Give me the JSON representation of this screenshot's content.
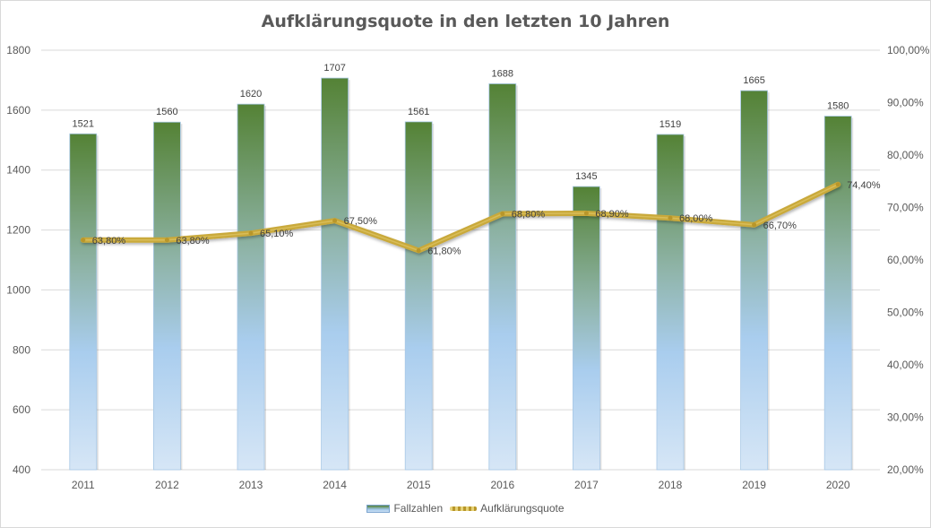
{
  "chart_data": {
    "type": "bar",
    "title": "Aufklärungsquote in den letzten 10 Jahren",
    "categories": [
      "2011",
      "2012",
      "2013",
      "2014",
      "2015",
      "2016",
      "2017",
      "2018",
      "2019",
      "2020"
    ],
    "series": [
      {
        "name": "Fallzahlen",
        "type": "bar",
        "axis": "left",
        "values": [
          1521,
          1560,
          1620,
          1707,
          1561,
          1688,
          1345,
          1519,
          1665,
          1580
        ],
        "labels": [
          "1521",
          "1560",
          "1620",
          "1707",
          "1561",
          "1688",
          "1345",
          "1519",
          "1665",
          "1580"
        ]
      },
      {
        "name": "Aufklärungsquote",
        "type": "line",
        "axis": "right",
        "values": [
          63.8,
          63.8,
          65.1,
          67.5,
          61.8,
          68.8,
          68.9,
          68.0,
          66.7,
          74.4
        ],
        "labels": [
          "63,80%",
          "63,80%",
          "65,10%",
          "67,50%",
          "61,80%",
          "68,80%",
          "68,90%",
          "68,00%",
          "66,70%",
          "74,40%"
        ]
      }
    ],
    "ylim": [
      400,
      1800
    ],
    "y_ticks": [
      "400",
      "600",
      "800",
      "1000",
      "1200",
      "1400",
      "1600",
      "1800"
    ],
    "y2lim": [
      20,
      100
    ],
    "y2_ticks": [
      "20,00%",
      "30,00%",
      "40,00%",
      "50,00%",
      "60,00%",
      "70,00%",
      "80,00%",
      "90,00%",
      "100,00%"
    ],
    "grid": true,
    "legend_position": "bottom",
    "colors": {
      "bar_top": "#548235",
      "bar_mid": "#9ec6e8",
      "bar_bottom": "#d6e6f6",
      "line": "#c9a93a",
      "grid": "#d9d9d9",
      "text": "#595959"
    }
  }
}
